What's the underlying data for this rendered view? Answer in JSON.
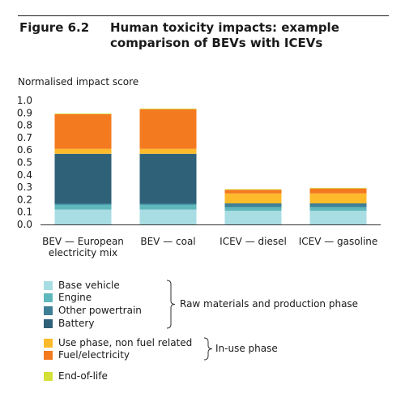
{
  "figure": {
    "number": "Figure 6.2",
    "title": "Human toxicity impacts: example comparison of BEVs with ICEVs"
  },
  "chart_data": {
    "type": "bar",
    "stacked": true,
    "ylabel": "Normalised impact score",
    "xlabel": "",
    "ylim": [
      0,
      1.0
    ],
    "yticks": [
      "0.0",
      "0.1",
      "0.2",
      "0.3",
      "0.4",
      "0.5",
      "0.6",
      "0.7",
      "0.8",
      "0.9",
      "1.0"
    ],
    "grid": false,
    "categories": [
      "BEV — European electricity mix",
      "BEV — coal",
      "ICEV — diesel",
      "ICEV — gasoline"
    ],
    "category_lines": [
      [
        "BEV — European",
        "electricity mix"
      ],
      [
        "BEV — coal"
      ],
      [
        "ICEV — diesel"
      ],
      [
        "ICEV — gasoline"
      ]
    ],
    "series": [
      {
        "name": "Base vehicle",
        "color": "#a8dde3",
        "values": [
          0.12,
          0.12,
          0.11,
          0.11
        ]
      },
      {
        "name": "Engine",
        "color": "#5fb8bb",
        "values": [
          0.04,
          0.04,
          0.03,
          0.03
        ]
      },
      {
        "name": "Other powertrain",
        "color": "#3d7f95",
        "values": [
          0.01,
          0.01,
          0.03,
          0.03
        ]
      },
      {
        "name": "Battery",
        "color": "#2f6178",
        "values": [
          0.4,
          0.4,
          0.0,
          0.0
        ]
      },
      {
        "name": "Use phase, non fuel related",
        "color": "#fdbb2b",
        "values": [
          0.04,
          0.04,
          0.08,
          0.08
        ]
      },
      {
        "name": "Fuel/electricity",
        "color": "#f47a20",
        "values": [
          0.28,
          0.32,
          0.03,
          0.04
        ]
      },
      {
        "name": "End-of-life",
        "color": "#d4df38",
        "values": [
          0.005,
          0.005,
          0.005,
          0.005
        ]
      }
    ],
    "legend_groups": [
      {
        "label": "Raw materials and production phase",
        "series": [
          0,
          1,
          2,
          3
        ]
      },
      {
        "label": "In-use phase",
        "series": [
          4,
          5
        ]
      }
    ],
    "legend_placement": "bottom"
  }
}
